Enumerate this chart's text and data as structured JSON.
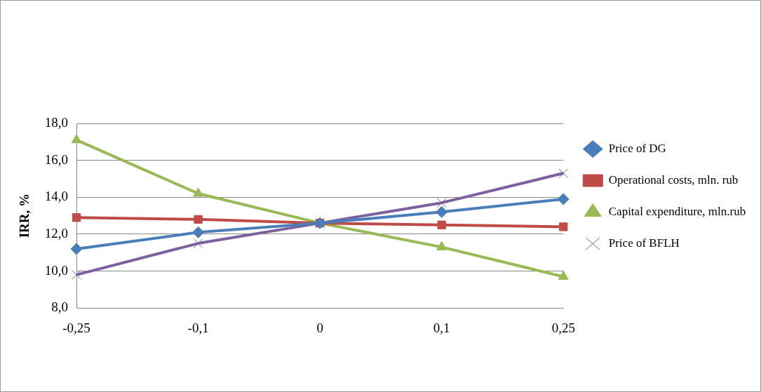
{
  "chart_data": {
    "type": "line",
    "ylabel": "IRR, %",
    "categories": [
      "-0,25",
      "-0,1",
      "0",
      "0,1",
      "0,25"
    ],
    "series": [
      {
        "name": "Price of DG",
        "color": "#4a7ebb",
        "marker": "diamond",
        "values": [
          11.2,
          12.1,
          12.6,
          13.2,
          13.9
        ]
      },
      {
        "name": "Operational costs, mln. rub",
        "color": "#be4b48",
        "marker": "square",
        "values": [
          12.9,
          12.8,
          12.6,
          12.5,
          12.4
        ]
      },
      {
        "name": "Capital expenditure, mln.rub",
        "color": "#98b954",
        "marker": "triangle",
        "values": [
          17.1,
          14.2,
          12.6,
          11.3,
          9.7
        ]
      },
      {
        "name": "Price of BFLH",
        "color": "#7d60a0",
        "marker": "cross",
        "values": [
          9.8,
          11.5,
          12.6,
          13.7,
          15.3
        ]
      }
    ],
    "ylim": [
      8,
      18
    ],
    "yticks": [
      {
        "value": 8,
        "label": "8,0"
      },
      {
        "value": 10,
        "label": "10,0"
      },
      {
        "value": 12,
        "label": "12,0"
      },
      {
        "value": 14,
        "label": "14,0"
      },
      {
        "value": 16,
        "label": "16,0"
      },
      {
        "value": 18,
        "label": "18,0"
      }
    ],
    "grid": "y",
    "legend": "right",
    "line_style": "solid"
  }
}
